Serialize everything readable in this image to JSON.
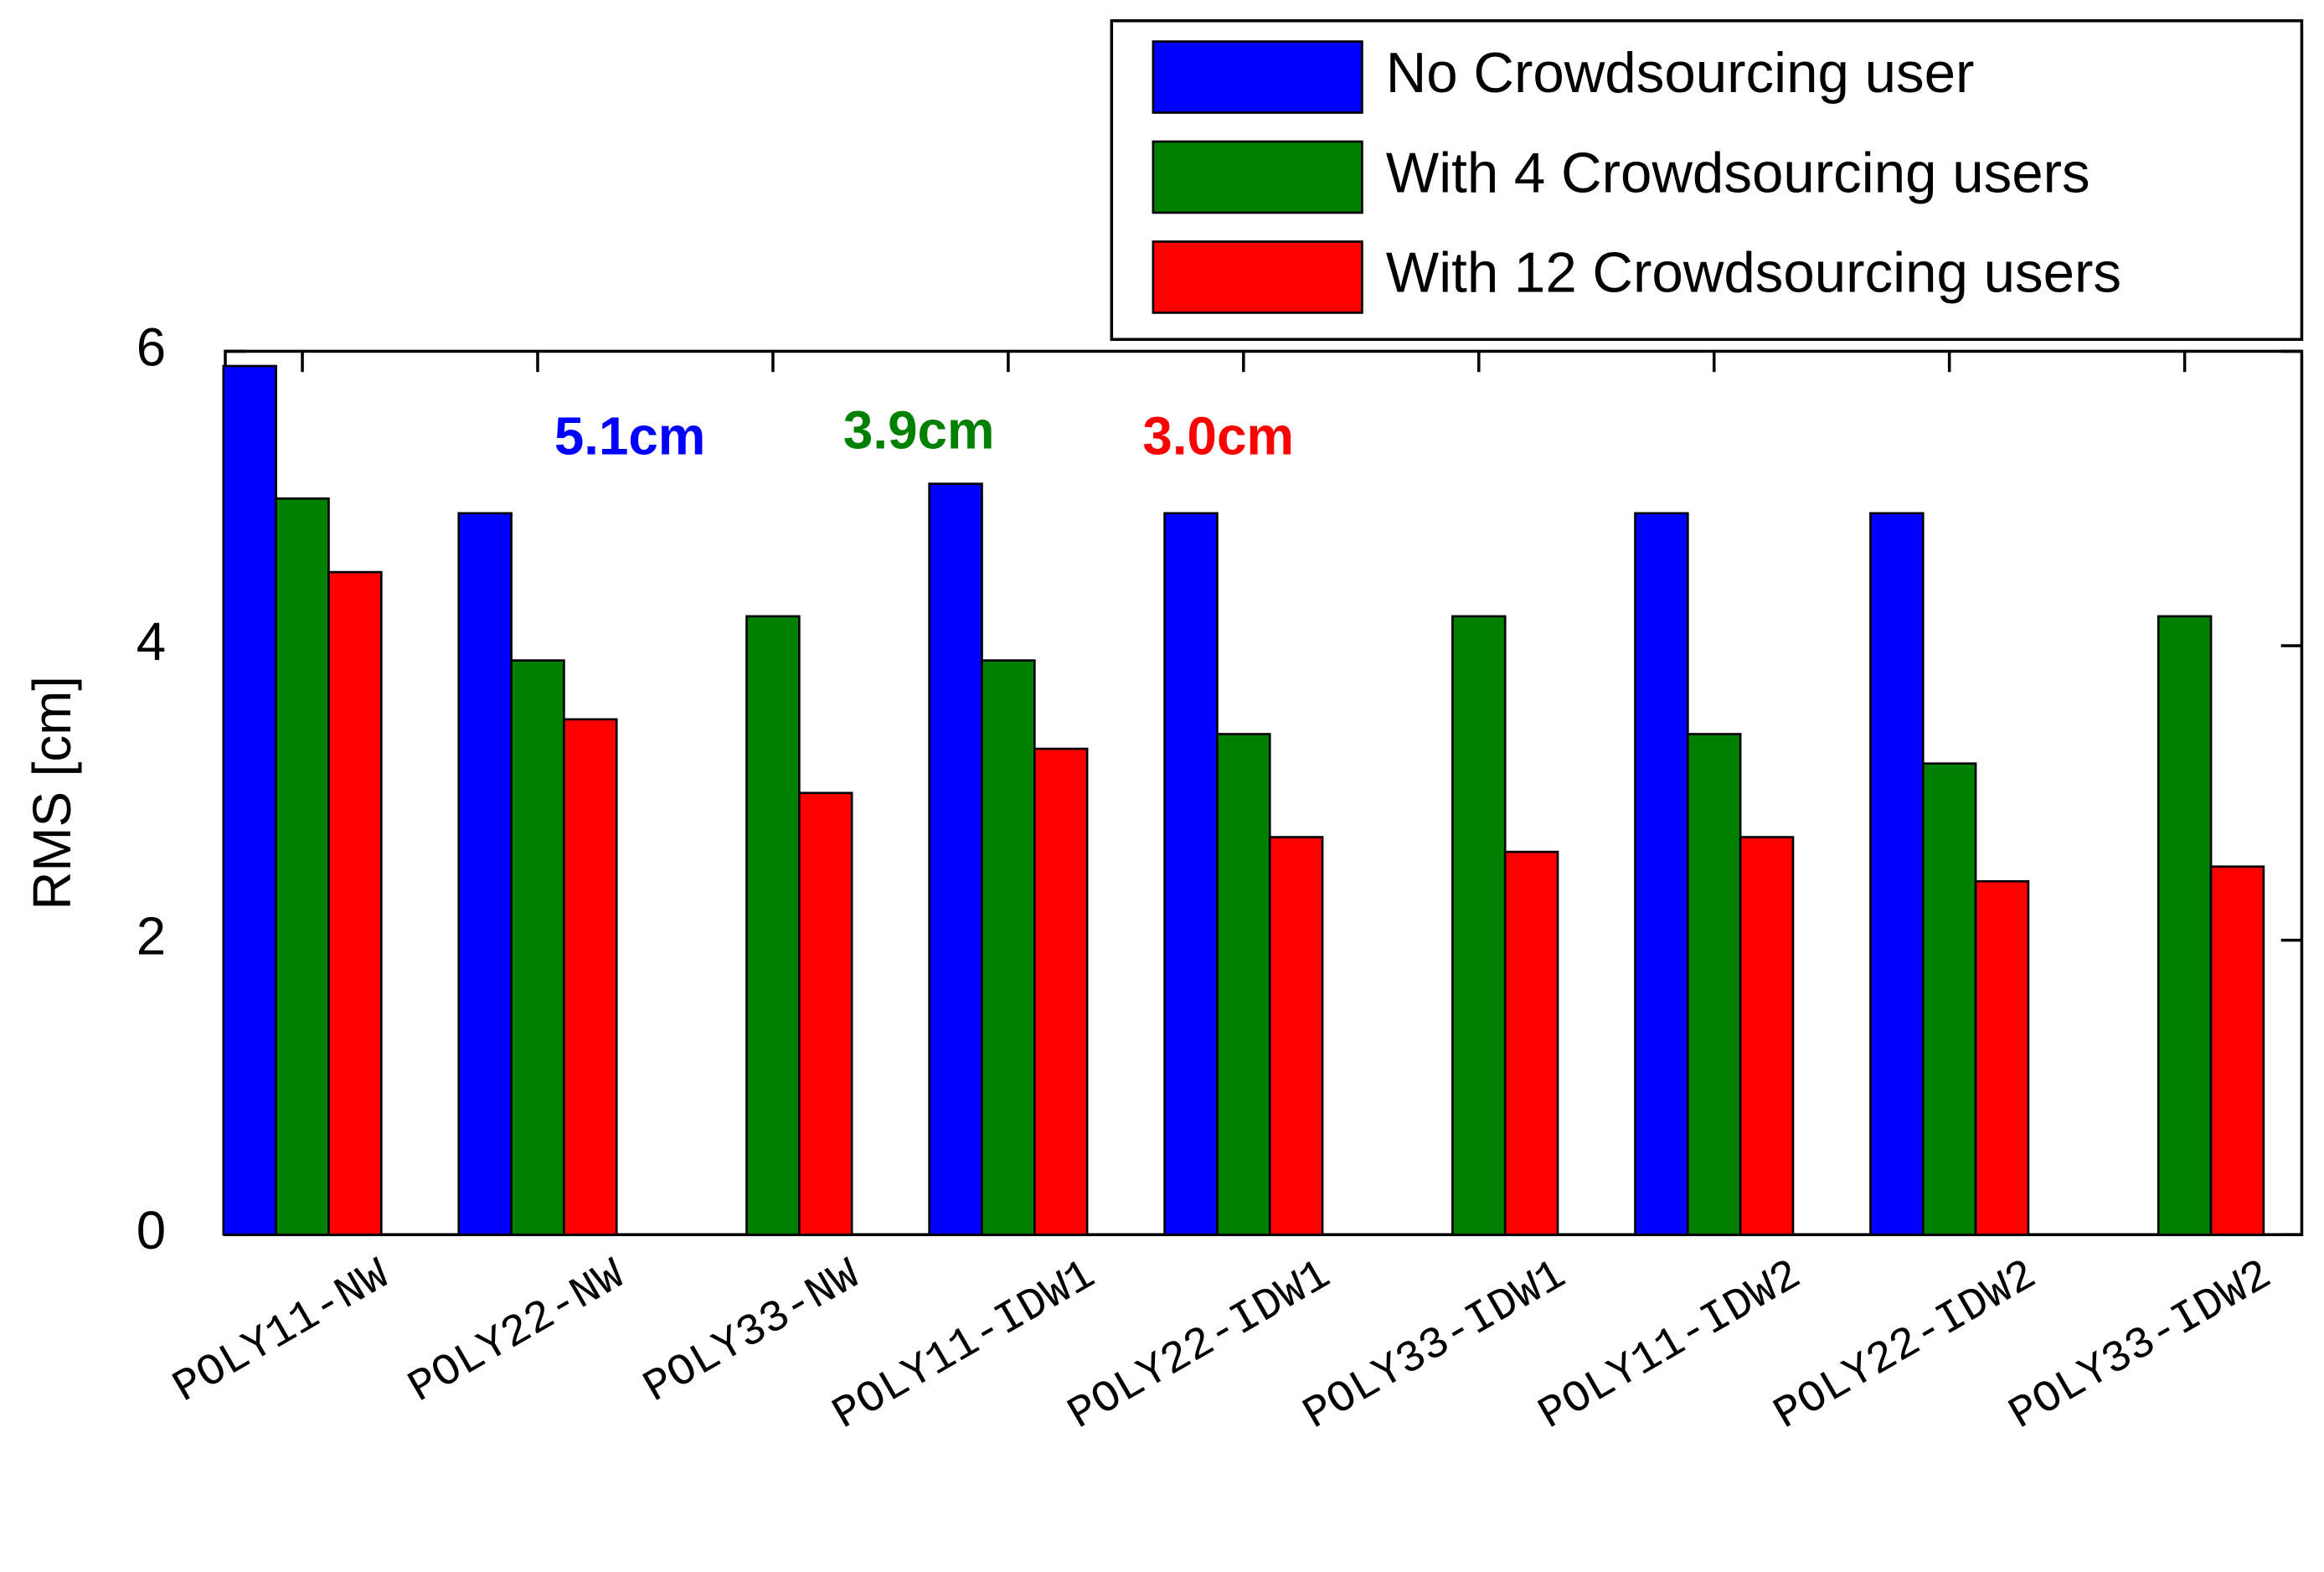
{
  "chart_data": {
    "type": "bar",
    "categories": [
      "POLY11-NW",
      "POLY22-NW",
      "POLY33-NW",
      "POLY11-IDW1",
      "POLY22-IDW1",
      "POLY33-IDW1",
      "POLY11-IDW2",
      "POLY22-IDW2",
      "POLY33-IDW2"
    ],
    "series": [
      {
        "name": "No Crowdsourcing user",
        "color": "#0000ff",
        "values": [
          5.9,
          4.9,
          null,
          5.1,
          4.9,
          null,
          4.9,
          4.9,
          null
        ]
      },
      {
        "name": "With 4 Crowdsourcing users",
        "color": "#008000",
        "values": [
          5.0,
          3.9,
          4.2,
          3.9,
          3.4,
          4.2,
          3.4,
          3.2,
          4.2
        ]
      },
      {
        "name": "With 12 Crowdsourcing users",
        "color": "#ff0000",
        "values": [
          4.5,
          3.5,
          3.0,
          3.3,
          2.7,
          2.6,
          2.7,
          2.4,
          2.5
        ]
      }
    ],
    "y_label": "RMS [cm]",
    "ylim": [
      0,
      6
    ],
    "yticks": [
      0,
      2,
      4,
      6
    ],
    "annotations": [
      {
        "text": "5.1cm",
        "color": "#0000ff"
      },
      {
        "text": "3.9cm",
        "color": "#008000"
      },
      {
        "text": "3.0cm",
        "color": "#ff0000"
      }
    ],
    "legend": "top-right"
  }
}
